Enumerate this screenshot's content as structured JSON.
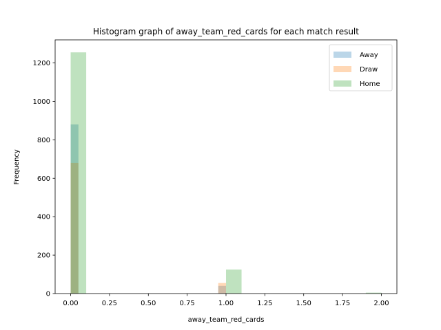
{
  "chart_data": {
    "type": "bar",
    "title": "Histogram graph of away_team_red_cards for each match result",
    "xlabel": "away_team_red_cards",
    "ylabel": "Frequency",
    "xlim": [
      -0.1,
      2.1
    ],
    "ylim": [
      0,
      1320
    ],
    "xticks": [
      0.0,
      0.25,
      0.5,
      0.75,
      1.0,
      1.25,
      1.5,
      1.75,
      2.0
    ],
    "xtick_labels": [
      "0.00",
      "0.25",
      "0.50",
      "0.75",
      "1.00",
      "1.25",
      "1.50",
      "1.75",
      "2.00"
    ],
    "yticks": [
      0,
      200,
      400,
      600,
      800,
      1000,
      1200
    ],
    "ytick_labels": [
      "0",
      "200",
      "400",
      "600",
      "800",
      "1000",
      "1200"
    ],
    "legend_position": "top-right",
    "grid": false,
    "series": [
      {
        "name": "Away",
        "color": "#1f77b4",
        "alpha": 0.3,
        "bins": [
          {
            "x0": 0.0,
            "x1": 0.05,
            "value": 880
          },
          {
            "x0": 0.95,
            "x1": 1.0,
            "value": 40
          }
        ]
      },
      {
        "name": "Draw",
        "color": "#ff7f0e",
        "alpha": 0.3,
        "bins": [
          {
            "x0": 0.0,
            "x1": 0.05,
            "value": 680
          },
          {
            "x0": 0.95,
            "x1": 1.0,
            "value": 55
          }
        ]
      },
      {
        "name": "Home",
        "color": "#2ca02c",
        "alpha": 0.3,
        "bins": [
          {
            "x0": 0.0,
            "x1": 0.1,
            "value": 1255
          },
          {
            "x0": 1.0,
            "x1": 1.1,
            "value": 125
          },
          {
            "x0": 1.9,
            "x1": 2.0,
            "value": 5
          }
        ]
      }
    ]
  }
}
